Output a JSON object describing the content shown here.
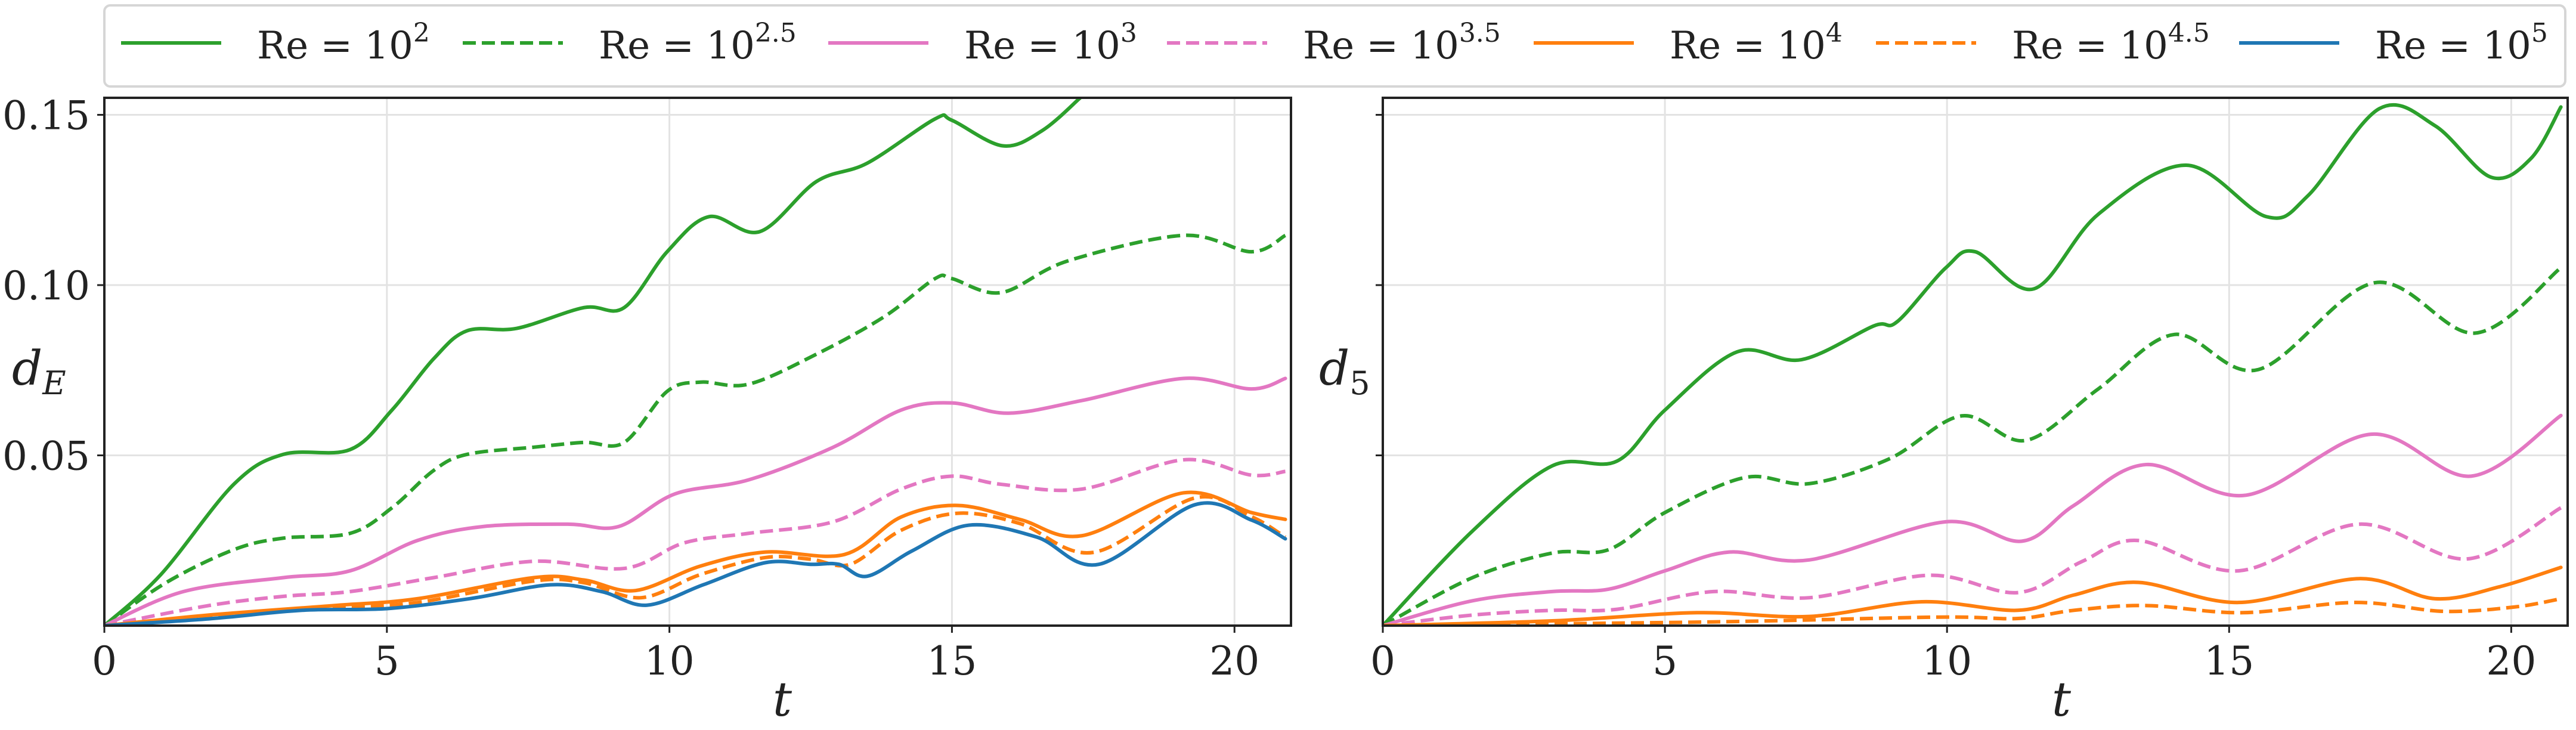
{
  "chart_data": [
    {
      "type": "line",
      "xlabel": "t",
      "ylabel": "d_E",
      "ylabel_main": "d",
      "ylabel_sub": "E",
      "xlim": [
        0,
        21
      ],
      "ylim": [
        0,
        0.155
      ],
      "xticks": [
        "0",
        "5",
        "10",
        "15",
        "20"
      ],
      "xtick_values": [
        0,
        5,
        10,
        15,
        20
      ],
      "yticks": [
        "0.05",
        "0.10",
        "0.15"
      ],
      "ytick_values": [
        0.05,
        0.1,
        0.15
      ],
      "ytick_labels_shown": true,
      "grid": true,
      "series": [
        {
          "name": "Re = 10^2",
          "color": "#2ca02c",
          "dash": false,
          "x": [
            0,
            1.0,
            2.29,
            3.17,
            4.35,
            5.09,
            5.83,
            6.42,
            7.3,
            8.49,
            9.2,
            9.96,
            10.7,
            11.6,
            12.6,
            13.5,
            14.7,
            15.0,
            15.9,
            16.6,
            17.27
          ],
          "y": [
            0,
            0.015,
            0.0415,
            0.0503,
            0.0517,
            0.0633,
            0.0784,
            0.0866,
            0.0873,
            0.0934,
            0.0934,
            0.1098,
            0.1201,
            0.1157,
            0.1304,
            0.1358,
            0.1488,
            0.1484,
            0.1409,
            0.1454,
            0.155
          ]
        },
        {
          "name": "Re = 10^2.5",
          "color": "#2ca02c",
          "dash": true,
          "x": [
            0,
            1.1,
            2.29,
            3.17,
            4.35,
            5.09,
            5.83,
            6.42,
            7.6,
            8.49,
            9.2,
            9.96,
            10.55,
            11.4,
            12.6,
            13.8,
            14.7,
            15.0,
            15.87,
            17.05,
            19.1,
            20.3,
            20.9
          ],
          "y": [
            0,
            0.0127,
            0.0223,
            0.0257,
            0.0271,
            0.0346,
            0.0456,
            0.0503,
            0.0524,
            0.0538,
            0.0538,
            0.0688,
            0.0715,
            0.0709,
            0.0797,
            0.0907,
            0.1019,
            0.1019,
            0.0978,
            0.1071,
            0.1146,
            0.1098,
            0.1146
          ]
        },
        {
          "name": "Re = 10^3",
          "color": "#e377c2",
          "dash": false,
          "x": [
            0,
            1.4,
            3.17,
            4.35,
            5.54,
            6.7,
            8.2,
            9.1,
            10.1,
            11.4,
            12.9,
            14.1,
            15.0,
            16.0,
            17.3,
            19.1,
            20.3,
            20.9
          ],
          "y": [
            0,
            0.01,
            0.0141,
            0.0161,
            0.025,
            0.0291,
            0.0298,
            0.0291,
            0.0387,
            0.0428,
            0.0524,
            0.0633,
            0.0654,
            0.0624,
            0.0661,
            0.0726,
            0.0695,
            0.0726
          ]
        },
        {
          "name": "Re = 10^3.5",
          "color": "#e377c2",
          "dash": true,
          "x": [
            0,
            1.85,
            3.17,
            4.35,
            5.83,
            7.6,
            9.2,
            10.26,
            11.4,
            12.9,
            14.1,
            15.0,
            15.87,
            17.3,
            19.1,
            20.3,
            20.9
          ],
          "y": [
            0,
            0.0059,
            0.0086,
            0.01,
            0.0141,
            0.0189,
            0.0168,
            0.0243,
            0.0271,
            0.0305,
            0.0401,
            0.0439,
            0.0415,
            0.0401,
            0.0487,
            0.0442,
            0.0453
          ]
        },
        {
          "name": "Re = 10^4",
          "color": "#ff7f0e",
          "dash": false,
          "x": [
            0,
            1.85,
            4.06,
            5.54,
            7.6,
            8.49,
            9.4,
            10.55,
            11.7,
            13.1,
            14.1,
            15.1,
            16.2,
            17.3,
            19.1,
            20.3,
            20.9
          ],
          "y": [
            0,
            0.0031,
            0.0059,
            0.0079,
            0.0141,
            0.0134,
            0.0103,
            0.0175,
            0.0216,
            0.0209,
            0.0319,
            0.0353,
            0.0312,
            0.0264,
            0.039,
            0.0332,
            0.0312
          ]
        },
        {
          "name": "Re = 10^4.5",
          "color": "#ff7f0e",
          "dash": true,
          "x": [
            0,
            1.85,
            4.06,
            5.54,
            7.6,
            8.49,
            9.5,
            10.55,
            11.7,
            12.5,
            13.2,
            14.1,
            15.1,
            16.2,
            17.5,
            19.3,
            20.3,
            20.9
          ],
          "y": [
            0,
            0.0025,
            0.0053,
            0.0068,
            0.0131,
            0.0126,
            0.0082,
            0.015,
            0.02,
            0.0195,
            0.018,
            0.028,
            0.033,
            0.03,
            0.0215,
            0.0375,
            0.032,
            0.026
          ]
        },
        {
          "name": "Re = 10^5",
          "color": "#1f77b4",
          "dash": false,
          "x": [
            0,
            1.85,
            3.5,
            5.0,
            6.5,
            7.9,
            8.8,
            9.6,
            10.6,
            11.7,
            12.5,
            13.0,
            13.5,
            14.3,
            15.3,
            16.5,
            17.6,
            19.3,
            20.3,
            20.9
          ],
          "y": [
            0,
            0.002,
            0.0045,
            0.005,
            0.008,
            0.012,
            0.01,
            0.006,
            0.012,
            0.0185,
            0.018,
            0.018,
            0.0145,
            0.022,
            0.0295,
            0.026,
            0.018,
            0.0355,
            0.031,
            0.0255
          ]
        }
      ]
    },
    {
      "type": "line",
      "xlabel": "t",
      "ylabel": "d_5",
      "ylabel_main": "d",
      "ylabel_sub": "5",
      "xlim": [
        0,
        21
      ],
      "ylim": [
        0,
        0.155
      ],
      "xticks": [
        "0",
        "5",
        "10",
        "15",
        "20"
      ],
      "xtick_values": [
        0,
        5,
        10,
        15,
        20
      ],
      "ytick_values": [
        0.05,
        0.1,
        0.15
      ],
      "ytick_labels_shown": false,
      "grid": true,
      "series": [
        {
          "name": "Re = 10^2",
          "color": "#2ca02c",
          "dash": false,
          "x": [
            0,
            1.59,
            3.0,
            4.15,
            5.0,
            6.28,
            7.42,
            8.7,
            9.12,
            9.98,
            10.5,
            11.54,
            12.68,
            14.24,
            15.66,
            16.4,
            17.66,
            18.65,
            19.64,
            20.35,
            20.88
          ],
          "y": [
            0,
            0.0278,
            0.0469,
            0.0483,
            0.0633,
            0.0804,
            0.0781,
            0.088,
            0.0893,
            0.1051,
            0.1098,
            0.0989,
            0.1208,
            0.1352,
            0.1201,
            0.1263,
            0.1518,
            0.1468,
            0.1317,
            0.1372,
            0.1523
          ]
        },
        {
          "name": "Re = 10^2.5",
          "color": "#2ca02c",
          "dash": true,
          "x": [
            0,
            1.59,
            3.0,
            4.0,
            5.0,
            6.42,
            7.56,
            8.98,
            10.26,
            11.4,
            12.68,
            14.03,
            15.52,
            17.58,
            19.36,
            20.88
          ],
          "y": [
            0,
            0.0141,
            0.0213,
            0.0223,
            0.0332,
            0.0435,
            0.0417,
            0.049,
            0.0616,
            0.0544,
            0.0695,
            0.0855,
            0.0752,
            0.1007,
            0.0859,
            0.1051
          ]
        },
        {
          "name": "Re = 10^3",
          "color": "#e377c2",
          "dash": false,
          "x": [
            0,
            1.59,
            3.0,
            4.0,
            5.0,
            6.14,
            7.56,
            9.98,
            11.33,
            12.25,
            13.53,
            15.3,
            17.51,
            19.29,
            20.88
          ],
          "y": [
            0,
            0.0073,
            0.01,
            0.0107,
            0.0161,
            0.0216,
            0.0193,
            0.0305,
            0.0248,
            0.0353,
            0.0473,
            0.0383,
            0.0562,
            0.0439,
            0.0617
          ]
        },
        {
          "name": "Re = 10^3.5",
          "color": "#e377c2",
          "dash": true,
          "x": [
            0,
            1.59,
            3.0,
            4.15,
            5.86,
            7.56,
            9.69,
            11.26,
            12.4,
            13.39,
            15.17,
            17.3,
            19.22,
            20.88
          ],
          "y": [
            0,
            0.0031,
            0.0045,
            0.0048,
            0.01,
            0.0082,
            0.0148,
            0.0097,
            0.0189,
            0.025,
            0.0161,
            0.0298,
            0.0196,
            0.0346
          ]
        },
        {
          "name": "Re = 10^4",
          "color": "#ff7f0e",
          "dash": false,
          "x": [
            0,
            3.0,
            5.57,
            7.56,
            9.55,
            11.26,
            12.25,
            13.39,
            15.17,
            17.3,
            18.65,
            19.79,
            20.88
          ],
          "y": [
            0,
            0.0014,
            0.0038,
            0.0027,
            0.007,
            0.0045,
            0.009,
            0.0127,
            0.0068,
            0.0138,
            0.0079,
            0.0114,
            0.0171
          ]
        },
        {
          "name": "Re = 10^4.5",
          "color": "#ff7f0e",
          "dash": true,
          "x": [
            0,
            5.86,
            9.84,
            11.26,
            12.25,
            13.53,
            15.24,
            17.23,
            18.8,
            20.07,
            20.88
          ],
          "y": [
            0,
            0.0011,
            0.0025,
            0.0021,
            0.0045,
            0.0059,
            0.0038,
            0.0068,
            0.0042,
            0.0055,
            0.0079
          ]
        }
      ]
    }
  ],
  "legend": {
    "placement": "top",
    "entries": [
      {
        "base": "Re = 10",
        "exp": "2",
        "color": "#2ca02c",
        "dash": false
      },
      {
        "base": "Re = 10",
        "exp": "2.5",
        "color": "#2ca02c",
        "dash": true
      },
      {
        "base": "Re = 10",
        "exp": "3",
        "color": "#e377c2",
        "dash": false
      },
      {
        "base": "Re = 10",
        "exp": "3.5",
        "color": "#e377c2",
        "dash": true
      },
      {
        "base": "Re = 10",
        "exp": "4",
        "color": "#ff7f0e",
        "dash": false
      },
      {
        "base": "Re = 10",
        "exp": "4.5",
        "color": "#ff7f0e",
        "dash": true
      },
      {
        "base": "Re = 10",
        "exp": "5",
        "color": "#1f77b4",
        "dash": false
      }
    ]
  }
}
